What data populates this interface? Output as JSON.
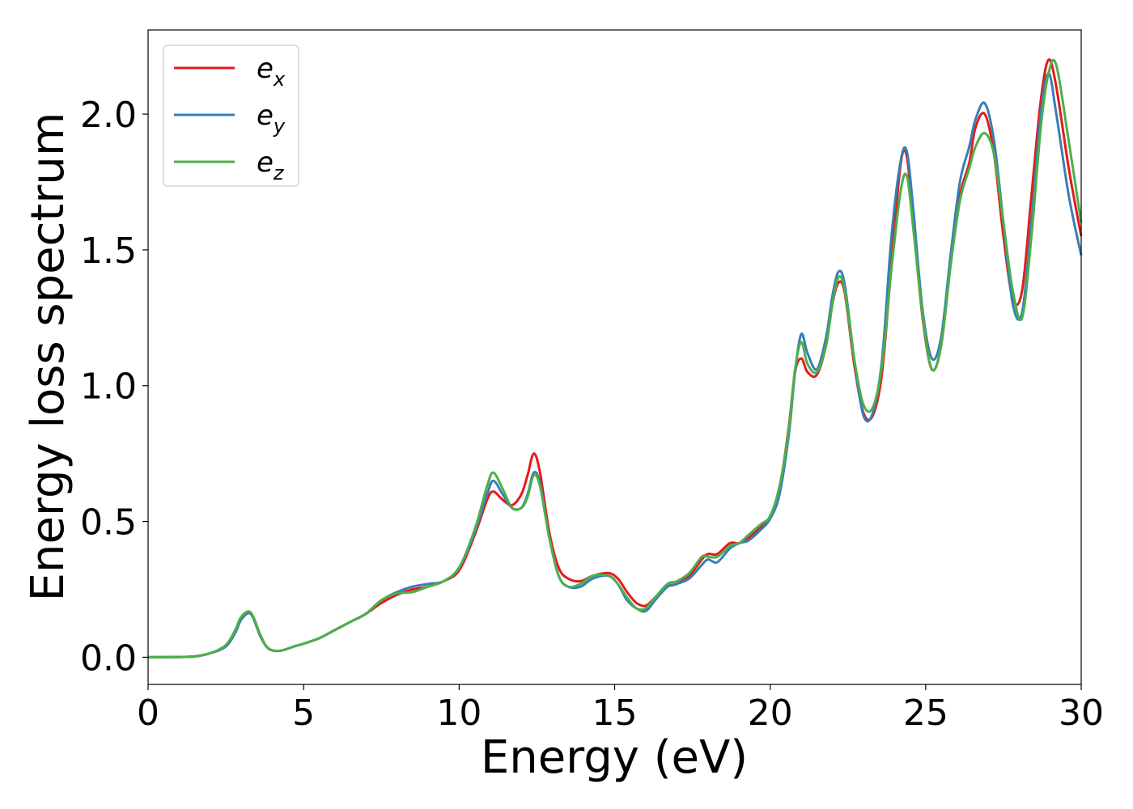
{
  "chart_data": {
    "type": "line",
    "xlabel": "Energy (eV)",
    "ylabel": "Energy loss spectrum",
    "xlim": [
      0,
      30
    ],
    "ylim": [
      -0.1,
      2.31
    ],
    "xticks": [
      0,
      5,
      10,
      15,
      20,
      25,
      30
    ],
    "xtick_labels": [
      "0",
      "5",
      "10",
      "15",
      "20",
      "25",
      "30"
    ],
    "yticks": [
      0.0,
      0.5,
      1.0,
      1.5,
      2.0
    ],
    "ytick_labels": [
      "0.0",
      "0.5",
      "1.0",
      "1.5",
      "2.0"
    ],
    "grid": false,
    "legend_position": "top-left",
    "series": [
      {
        "name": "e_x",
        "label_main": "e",
        "label_sub": "x",
        "color": "#e41a1c",
        "x": [
          0,
          1,
          1.5,
          2,
          2.5,
          2.8,
          3.0,
          3.3,
          3.6,
          3.8,
          4.0,
          4.3,
          4.7,
          5.0,
          5.5,
          6.0,
          6.5,
          7.0,
          7.5,
          8.0,
          8.5,
          9.0,
          9.5,
          10.0,
          10.5,
          10.9,
          11.1,
          11.4,
          11.7,
          12.0,
          12.2,
          12.4,
          12.6,
          12.9,
          13.2,
          13.5,
          13.9,
          14.3,
          14.8,
          15.1,
          15.4,
          15.7,
          16.0,
          16.3,
          16.7,
          17.0,
          17.4,
          17.8,
          18.0,
          18.3,
          18.7,
          19.0,
          19.3,
          19.7,
          20.0,
          20.3,
          20.6,
          20.8,
          21.0,
          21.2,
          21.5,
          21.8,
          22.0,
          22.2,
          22.4,
          22.7,
          23.0,
          23.3,
          23.6,
          23.9,
          24.2,
          24.4,
          24.6,
          24.9,
          25.2,
          25.5,
          25.8,
          26.1,
          26.4,
          26.6,
          26.9,
          27.2,
          27.5,
          27.8,
          28.1,
          28.4,
          28.7,
          28.95,
          29.2,
          29.6,
          30.0
        ],
        "y": [
          0.0,
          0.001,
          0.003,
          0.015,
          0.04,
          0.09,
          0.14,
          0.16,
          0.08,
          0.04,
          0.025,
          0.025,
          0.04,
          0.05,
          0.07,
          0.1,
          0.13,
          0.16,
          0.2,
          0.23,
          0.25,
          0.26,
          0.28,
          0.32,
          0.45,
          0.58,
          0.61,
          0.58,
          0.56,
          0.6,
          0.67,
          0.75,
          0.68,
          0.46,
          0.33,
          0.29,
          0.28,
          0.3,
          0.31,
          0.29,
          0.24,
          0.2,
          0.19,
          0.22,
          0.26,
          0.27,
          0.3,
          0.36,
          0.38,
          0.38,
          0.42,
          0.42,
          0.44,
          0.48,
          0.52,
          0.62,
          0.85,
          1.05,
          1.1,
          1.05,
          1.04,
          1.15,
          1.3,
          1.38,
          1.34,
          1.08,
          0.9,
          0.89,
          1.05,
          1.45,
          1.82,
          1.84,
          1.6,
          1.25,
          1.06,
          1.15,
          1.45,
          1.7,
          1.82,
          1.95,
          2.0,
          1.85,
          1.55,
          1.32,
          1.35,
          1.7,
          2.05,
          2.2,
          2.1,
          1.8,
          1.55
        ]
      },
      {
        "name": "e_y",
        "label_main": "e",
        "label_sub": "y",
        "color": "#377eb8",
        "x": [
          0,
          1,
          1.5,
          2,
          2.5,
          2.8,
          3.0,
          3.3,
          3.6,
          3.8,
          4.0,
          4.3,
          4.7,
          5.0,
          5.5,
          6.0,
          6.5,
          7.0,
          7.5,
          8.0,
          8.5,
          9.0,
          9.5,
          10.0,
          10.5,
          10.9,
          11.1,
          11.4,
          11.7,
          12.0,
          12.2,
          12.4,
          12.6,
          12.9,
          13.2,
          13.5,
          13.9,
          14.3,
          14.8,
          15.1,
          15.4,
          15.7,
          16.0,
          16.3,
          16.7,
          17.0,
          17.4,
          17.8,
          18.0,
          18.3,
          18.7,
          19.0,
          19.3,
          19.7,
          20.0,
          20.3,
          20.6,
          20.8,
          21.0,
          21.2,
          21.5,
          21.8,
          22.0,
          22.2,
          22.4,
          22.7,
          23.0,
          23.3,
          23.6,
          23.9,
          24.2,
          24.4,
          24.6,
          24.9,
          25.2,
          25.5,
          25.8,
          26.1,
          26.4,
          26.6,
          26.9,
          27.2,
          27.5,
          27.8,
          28.1,
          28.4,
          28.7,
          28.95,
          29.2,
          29.6,
          30.0
        ],
        "y": [
          0.0,
          0.001,
          0.003,
          0.015,
          0.04,
          0.09,
          0.14,
          0.16,
          0.08,
          0.04,
          0.025,
          0.025,
          0.04,
          0.05,
          0.07,
          0.1,
          0.13,
          0.16,
          0.21,
          0.24,
          0.26,
          0.27,
          0.28,
          0.33,
          0.46,
          0.6,
          0.65,
          0.6,
          0.55,
          0.55,
          0.6,
          0.68,
          0.64,
          0.44,
          0.3,
          0.26,
          0.26,
          0.29,
          0.3,
          0.27,
          0.21,
          0.18,
          0.17,
          0.21,
          0.26,
          0.27,
          0.29,
          0.34,
          0.36,
          0.35,
          0.4,
          0.42,
          0.43,
          0.47,
          0.51,
          0.6,
          0.82,
          1.05,
          1.19,
          1.12,
          1.06,
          1.18,
          1.33,
          1.42,
          1.37,
          1.1,
          0.89,
          0.9,
          1.1,
          1.55,
          1.83,
          1.86,
          1.65,
          1.28,
          1.1,
          1.18,
          1.48,
          1.75,
          1.88,
          1.98,
          2.04,
          1.9,
          1.6,
          1.3,
          1.27,
          1.6,
          2.0,
          2.15,
          2.0,
          1.7,
          1.48
        ]
      },
      {
        "name": "e_z",
        "label_main": "e",
        "label_sub": "z",
        "color": "#4daf4a",
        "x": [
          0,
          1,
          1.5,
          2,
          2.5,
          2.8,
          3.0,
          3.3,
          3.6,
          3.8,
          4.0,
          4.3,
          4.7,
          5.0,
          5.5,
          6.0,
          6.5,
          7.0,
          7.5,
          8.0,
          8.5,
          9.0,
          9.5,
          10.0,
          10.5,
          10.9,
          11.1,
          11.4,
          11.7,
          12.0,
          12.2,
          12.4,
          12.6,
          12.9,
          13.2,
          13.5,
          13.9,
          14.3,
          14.8,
          15.1,
          15.4,
          15.7,
          16.0,
          16.3,
          16.7,
          17.0,
          17.4,
          17.8,
          18.0,
          18.3,
          18.7,
          19.0,
          19.3,
          19.7,
          20.0,
          20.3,
          20.6,
          20.8,
          21.0,
          21.2,
          21.5,
          21.8,
          22.0,
          22.2,
          22.4,
          22.7,
          23.0,
          23.3,
          23.6,
          23.9,
          24.2,
          24.4,
          24.6,
          24.9,
          25.2,
          25.5,
          25.8,
          26.1,
          26.4,
          26.6,
          26.9,
          27.2,
          27.5,
          27.8,
          28.1,
          28.4,
          28.7,
          28.95,
          29.2,
          29.6,
          30.0
        ],
        "y": [
          0.0,
          0.001,
          0.003,
          0.015,
          0.045,
          0.1,
          0.15,
          0.165,
          0.085,
          0.04,
          0.025,
          0.025,
          0.04,
          0.05,
          0.07,
          0.1,
          0.13,
          0.16,
          0.21,
          0.235,
          0.24,
          0.26,
          0.28,
          0.33,
          0.47,
          0.63,
          0.68,
          0.62,
          0.55,
          0.55,
          0.59,
          0.67,
          0.63,
          0.44,
          0.3,
          0.26,
          0.27,
          0.3,
          0.3,
          0.27,
          0.22,
          0.18,
          0.18,
          0.22,
          0.27,
          0.28,
          0.31,
          0.37,
          0.37,
          0.37,
          0.41,
          0.42,
          0.45,
          0.49,
          0.52,
          0.63,
          0.84,
          1.06,
          1.16,
          1.08,
          1.05,
          1.15,
          1.3,
          1.4,
          1.35,
          1.1,
          0.93,
          0.92,
          1.08,
          1.43,
          1.72,
          1.77,
          1.58,
          1.26,
          1.06,
          1.15,
          1.44,
          1.68,
          1.8,
          1.88,
          1.93,
          1.85,
          1.6,
          1.35,
          1.25,
          1.55,
          1.95,
          2.15,
          2.18,
          1.9,
          1.6
        ]
      }
    ]
  }
}
